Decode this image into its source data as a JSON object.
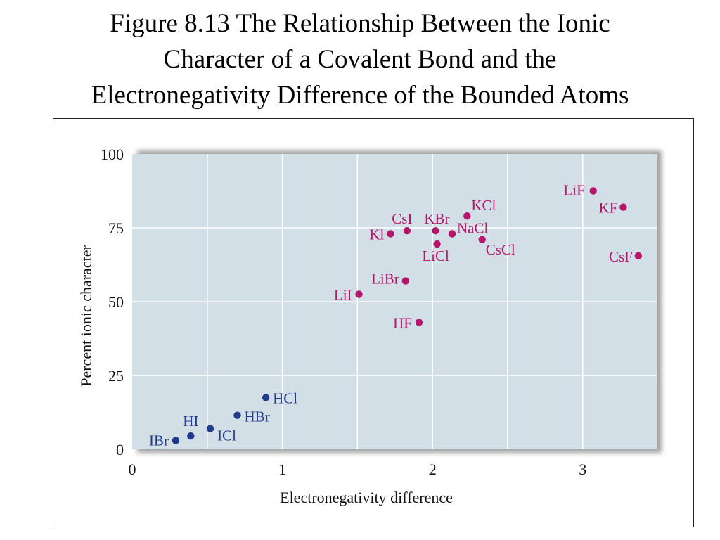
{
  "title": {
    "lines": [
      "Figure 8.13  The Relationship Between the Ionic",
      "Character of a Covalent Bond and the",
      "Electronegativity Difference of the Bounded Atoms"
    ]
  },
  "colors": {
    "plot_background": "#d3dfe6",
    "gridline": "#ffffff",
    "ionic": "#b5156b",
    "covalent": "#203a8c",
    "text": "#111111"
  },
  "chart_data": {
    "type": "scatter",
    "title": "",
    "xlabel": "Electronegativity difference",
    "ylabel": "Percent ionic character",
    "xlim": [
      0,
      3.5
    ],
    "ylim": [
      0,
      100
    ],
    "xticks": [
      0,
      1,
      2,
      3
    ],
    "yticks": [
      0,
      25,
      50,
      75,
      100
    ],
    "grid": true,
    "legend": "none",
    "series": [
      {
        "color": "#203a8c",
        "points": [
          {
            "label": "IBr",
            "x": 0.29,
            "y": 3
          },
          {
            "label": "HI",
            "x": 0.39,
            "y": 4.5
          },
          {
            "label": "ICl",
            "x": 0.52,
            "y": 7
          },
          {
            "label": "HBr",
            "x": 0.7,
            "y": 11.5
          },
          {
            "label": "HCl",
            "x": 0.89,
            "y": 17.5
          }
        ]
      },
      {
        "color": "#b5156b",
        "points": [
          {
            "label": "LiI",
            "x": 1.51,
            "y": 52.5
          },
          {
            "label": "LiBr",
            "x": 1.82,
            "y": 57
          },
          {
            "label": "HF",
            "x": 1.91,
            "y": 43
          },
          {
            "label": "Kl",
            "x": 1.72,
            "y": 73
          },
          {
            "label": "CsI",
            "x": 1.83,
            "y": 74
          },
          {
            "label": "KBr",
            "x": 2.02,
            "y": 74
          },
          {
            "label": "LiCl",
            "x": 2.03,
            "y": 69.5
          },
          {
            "label": "NaCl",
            "x": 2.13,
            "y": 73
          },
          {
            "label": "KCl",
            "x": 2.23,
            "y": 79
          },
          {
            "label": "CsCl",
            "x": 2.33,
            "y": 71
          },
          {
            "label": "LiF",
            "x": 3.07,
            "y": 87.5
          },
          {
            "label": "KF",
            "x": 3.27,
            "y": 82
          },
          {
            "label": "CsF",
            "x": 3.37,
            "y": 65.5
          }
        ]
      }
    ]
  }
}
